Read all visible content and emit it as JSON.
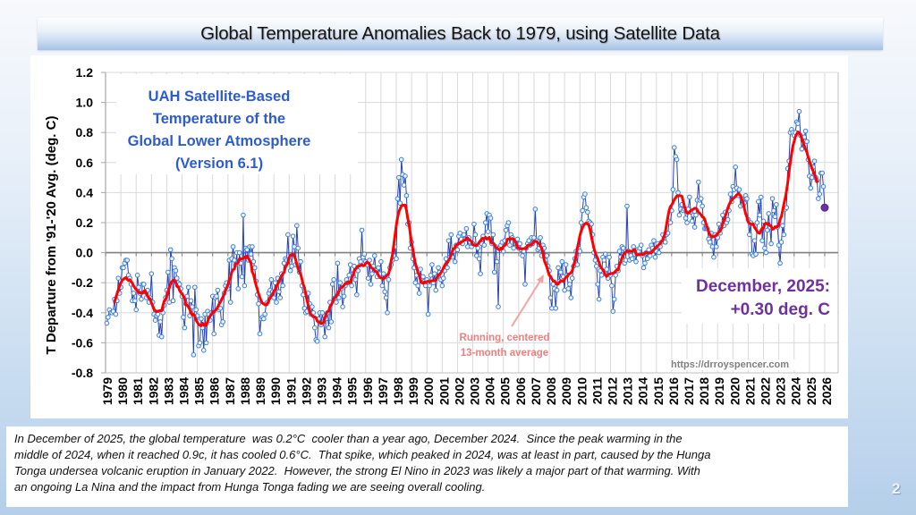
{
  "slide": {
    "title": "Global Temperature Anomalies Back to 1979, using Satellite Data",
    "page_number": "2"
  },
  "chart_data": {
    "type": "line",
    "title_lines": [
      "UAH Satellite-Based",
      "Temperature of the",
      "Global Lower Atmosphere",
      "(Version 6.1)"
    ],
    "xlabel": "",
    "ylabel": "T Departure from '91-'20 Avg. (deg. C)",
    "ylim": [
      -0.8,
      1.2
    ],
    "xlim": [
      1979,
      2026.88
    ],
    "grid": true,
    "y_ticks": [
      "1.2",
      "1.0",
      "0.8",
      "0.6",
      "0.4",
      "0.2",
      "0.0",
      "-0.2",
      "-0.4",
      "-0.6",
      "-0.8"
    ],
    "x_ticks": [
      "1979",
      "1980",
      "1981",
      "1982",
      "1983",
      "1984",
      "1985",
      "1986",
      "1987",
      "1988",
      "1989",
      "1990",
      "1991",
      "1992",
      "1993",
      "1994",
      "1995",
      "1996",
      "1997",
      "1998",
      "1999",
      "2000",
      "2001",
      "2002",
      "2003",
      "2004",
      "2005",
      "2006",
      "2007",
      "2008",
      "2009",
      "2010",
      "2011",
      "2012",
      "2013",
      "2014",
      "2015",
      "2016",
      "2017",
      "2018",
      "2019",
      "2020",
      "2021",
      "2022",
      "2023",
      "2024",
      "2025",
      "2026"
    ],
    "start_year": 1979,
    "frequency": "monthly",
    "series": [
      {
        "name": "Monthly global lower-atmosphere temperature anomaly",
        "line_color": "#2443b8",
        "marker_color": "#3f7fd4",
        "values": [
          -0.47,
          -0.43,
          -0.38,
          -0.4,
          -0.4,
          -0.39,
          -0.31,
          -0.41,
          -0.32,
          -0.17,
          -0.27,
          -0.23,
          -0.1,
          -0.1,
          -0.07,
          -0.05,
          -0.05,
          -0.15,
          -0.17,
          -0.21,
          -0.32,
          -0.27,
          -0.32,
          -0.38,
          -0.15,
          -0.23,
          -0.27,
          -0.31,
          -0.21,
          -0.21,
          -0.26,
          -0.3,
          -0.25,
          -0.33,
          -0.3,
          -0.14,
          -0.33,
          -0.41,
          -0.45,
          -0.42,
          -0.41,
          -0.55,
          -0.46,
          -0.56,
          -0.4,
          -0.35,
          -0.3,
          -0.25,
          -0.13,
          -0.33,
          0.02,
          -0.04,
          -0.32,
          -0.1,
          -0.12,
          -0.17,
          -0.2,
          -0.21,
          -0.24,
          -0.29,
          -0.43,
          -0.5,
          -0.34,
          -0.29,
          -0.23,
          -0.42,
          -0.32,
          -0.36,
          -0.68,
          -0.23,
          -0.38,
          -0.42,
          -0.62,
          -0.6,
          -0.44,
          -0.5,
          -0.65,
          -0.41,
          -0.6,
          -0.39,
          -0.41,
          -0.45,
          -0.4,
          -0.29,
          -0.54,
          -0.3,
          -0.29,
          -0.25,
          -0.38,
          -0.37,
          -0.48,
          -0.46,
          -0.27,
          -0.22,
          -0.2,
          -0.24,
          -0.05,
          -0.33,
          -0.04,
          0.04,
          -0.05,
          -0.08,
          0.0,
          -0.24,
          0.0,
          -0.07,
          -0.16,
          0.25,
          -0.22,
          0.03,
          0.02,
          -0.05,
          0.04,
          -0.01,
          0.04,
          -0.06,
          -0.1,
          -0.19,
          -0.28,
          -0.34,
          -0.54,
          -0.44,
          -0.43,
          -0.44,
          -0.41,
          -0.34,
          -0.33,
          -0.27,
          -0.25,
          -0.18,
          -0.26,
          -0.3,
          -0.2,
          -0.33,
          -0.17,
          -0.26,
          -0.3,
          -0.14,
          -0.22,
          -0.07,
          -0.04,
          -0.05,
          0.12,
          -0.05,
          -0.12,
          -0.09,
          0.11,
          0.04,
          -0.08,
          0.18,
          0.03,
          -0.13,
          -0.06,
          -0.22,
          -0.28,
          -0.37,
          -0.4,
          -0.39,
          -0.27,
          -0.34,
          -0.41,
          -0.36,
          -0.4,
          -0.5,
          -0.58,
          -0.59,
          -0.44,
          -0.4,
          -0.48,
          -0.4,
          -0.46,
          -0.56,
          -0.44,
          -0.4,
          -0.5,
          -0.33,
          -0.46,
          -0.21,
          -0.18,
          -0.3,
          -0.33,
          -0.07,
          -0.3,
          -0.2,
          -0.24,
          -0.36,
          -0.29,
          -0.22,
          -0.18,
          -0.2,
          -0.15,
          -0.08,
          -0.22,
          -0.14,
          -0.09,
          -0.18,
          -0.28,
          -0.12,
          -0.04,
          -0.06,
          0.15,
          -0.03,
          -0.01,
          -0.06,
          -0.08,
          -0.17,
          -0.05,
          -0.21,
          -0.14,
          -0.09,
          -0.02,
          -0.12,
          -0.16,
          -0.1,
          -0.14,
          -0.06,
          -0.22,
          -0.14,
          -0.26,
          -0.3,
          -0.4,
          -0.18,
          -0.1,
          -0.08,
          -0.05,
          -0.02,
          0.04,
          -0.04,
          0.36,
          0.5,
          0.33,
          0.62,
          0.52,
          0.45,
          0.51,
          0.38,
          0.19,
          0.2,
          0.03,
          0.07,
          -0.04,
          -0.1,
          -0.2,
          -0.15,
          -0.22,
          -0.27,
          -0.11,
          -0.17,
          -0.16,
          -0.19,
          -0.22,
          -0.18,
          -0.41,
          -0.22,
          -0.15,
          -0.08,
          -0.2,
          -0.14,
          -0.25,
          -0.16,
          -0.1,
          -0.13,
          -0.18,
          -0.22,
          -0.17,
          -0.12,
          -0.04,
          -0.1,
          0.08,
          -0.03,
          0.12,
          -0.03,
          0.01,
          -0.06,
          0.05,
          0.02,
          0.11,
          0.13,
          0.09,
          0.06,
          0.12,
          0.09,
          0.16,
          0.04,
          0.1,
          0.07,
          0.04,
          0.06,
          0.19,
          0.12,
          -0.02,
          0.03,
          -0.04,
          -0.14,
          0.06,
          0.11,
          0.05,
          0.2,
          0.26,
          0.14,
          0.25,
          0.23,
          0.06,
          0.12,
          -0.13,
          0.04,
          -0.06,
          -0.36,
          0.03,
          0.05,
          0.07,
          0.01,
          0.08,
          0.15,
          0.18,
          0.2,
          0.05,
          0.12,
          0.1,
          0.03,
          0.08,
          0.06,
          0.09,
          0.03,
          0.06,
          0.02,
          -0.02,
          0.01,
          -0.21,
          0.03,
          0.06,
          0.08,
          0.05,
          0.1,
          0.06,
          0.1,
          0.29,
          0.08,
          0.02,
          0.03,
          0.1,
          -0.02,
          0.05,
          0.03,
          -0.05,
          -0.02,
          -0.09,
          -0.12,
          -0.3,
          -0.37,
          -0.21,
          -0.24,
          -0.37,
          -0.25,
          -0.1,
          -0.19,
          -0.13,
          -0.06,
          -0.16,
          -0.25,
          -0.08,
          -0.15,
          -0.24,
          -0.21,
          -0.3,
          -0.17,
          -0.09,
          -0.04,
          0.01,
          -0.08,
          0.03,
          0.01,
          0.2,
          0.28,
          0.37,
          0.39,
          0.3,
          0.27,
          0.21,
          0.2,
          0.19,
          0.12,
          0.0,
          -0.05,
          -0.09,
          -0.21,
          -0.31,
          -0.12,
          -0.15,
          -0.03,
          -0.05,
          -0.01,
          -0.11,
          -0.17,
          -0.03,
          -0.15,
          -0.22,
          -0.39,
          -0.31,
          -0.15,
          -0.09,
          -0.12,
          0.01,
          -0.03,
          0.04,
          0.03,
          -0.07,
          -0.05,
          0.31,
          0.01,
          -0.05,
          -0.02,
          -0.04,
          0.04,
          -0.01,
          -0.06,
          0.02,
          0.01,
          0.03,
          0.05,
          -0.02,
          -0.1,
          -0.07,
          0.0,
          -0.04,
          0.02,
          -0.02,
          0.05,
          0.03,
          0.08,
          -0.03,
          0.01,
          0.06,
          0.0,
          0.04,
          0.07,
          0.12,
          0.09,
          0.07,
          0.12,
          0.13,
          0.21,
          0.2,
          0.28,
          0.42,
          0.7,
          0.64,
          0.62,
          0.4,
          0.25,
          0.29,
          0.32,
          0.28,
          0.29,
          0.23,
          0.2,
          0.29,
          0.37,
          0.27,
          0.21,
          0.25,
          0.17,
          0.25,
          0.35,
          0.47,
          0.35,
          0.36,
          0.31,
          0.2,
          0.16,
          0.16,
          0.16,
          0.09,
          0.07,
          0.13,
          0.04,
          -0.03,
          0.12,
          0.04,
          0.1,
          0.19,
          0.13,
          0.17,
          0.25,
          0.18,
          0.27,
          0.2,
          0.22,
          0.28,
          0.39,
          0.34,
          0.44,
          0.42,
          0.57,
          0.43,
          0.38,
          0.42,
          0.31,
          0.36,
          0.32,
          0.33,
          0.38,
          0.36,
          0.22,
          0.12,
          0.2,
          -0.01,
          -0.02,
          0.08,
          -0.01,
          0.2,
          0.34,
          0.25,
          0.37,
          0.08,
          0.21,
          0.03,
          0.0,
          0.15,
          0.26,
          0.17,
          0.06,
          0.36,
          0.28,
          0.24,
          0.32,
          0.17,
          0.05,
          -0.07,
          0.07,
          0.18,
          0.12,
          0.29,
          0.3,
          0.56,
          0.61,
          0.8,
          0.82,
          0.8,
          0.78,
          0.8,
          0.87,
          0.86,
          0.94,
          0.78,
          0.69,
          0.73,
          0.77,
          0.81,
          0.74,
          0.62,
          0.51,
          0.43,
          0.5,
          0.57,
          0.61,
          0.5,
          0.48,
          0.36,
          0.39,
          0.53,
          0.53,
          0.44,
          0.3
        ]
      },
      {
        "name": "Running, centered 13-month average",
        "line_color": "#ff0000",
        "window": 13,
        "derived_from_series": 0
      }
    ],
    "latest_point": {
      "label": "December, 2025",
      "value": 0.3,
      "color": "#7030a0"
    },
    "annotations": {
      "latest_label": "December, 2025:",
      "latest_value": "+0.30 deg. C",
      "running_avg_label": [
        "Running, centered",
        "13-month average"
      ],
      "source": "https://drroyspencer.com"
    },
    "colors": {
      "inset_title": "#2d5bd0",
      "latest_annotation": "#7030a0",
      "running_avg_label": "#f07f7f"
    }
  },
  "description": {
    "lines": [
      "In December of 2025, the global temperature  was 0.2°C  cooler than a year ago, December 2024.  Since the peak warming in the",
      "middle of 2024, when it reached 0.9c, it has cooled 0.6°C.  That spike, which peaked in 2024, was at least in part, caused by the Hunga",
      "Tonga undersea volcanic eruption in January 2022.  However, the strong El Nino in 2023 was likely a major part of that warming. With",
      "an ongoing La Nina and the impact from Hunga Tonga fading we are seeing overall cooling."
    ]
  }
}
